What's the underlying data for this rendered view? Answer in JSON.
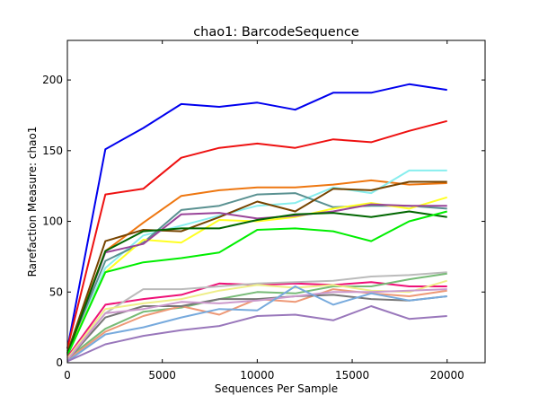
{
  "chart_data": {
    "type": "line",
    "title": "chao1: BarcodeSequence",
    "xlabel": "Sequences Per Sample",
    "ylabel": "Rarefaction Measure: chao1",
    "xlim": [
      0,
      22000
    ],
    "ylim": [
      0,
      228
    ],
    "xticks": [
      0,
      5000,
      10000,
      15000,
      20000
    ],
    "yticks": [
      0,
      50,
      100,
      150,
      200
    ],
    "grid": false,
    "x": [
      0,
      2000,
      4000,
      6000,
      8000,
      10000,
      12000,
      14000,
      16000,
      18000,
      20000
    ],
    "series": [
      {
        "color": "#0000ee",
        "values": [
          10,
          151,
          166,
          183,
          181,
          184,
          179,
          191,
          191,
          197,
          193
        ]
      },
      {
        "color": "#ee1111",
        "values": [
          10,
          119,
          123,
          145,
          152,
          155,
          152,
          158,
          156,
          164,
          171
        ]
      },
      {
        "color": "#ee7711",
        "values": [
          8,
          79,
          99,
          118,
          122,
          124,
          124,
          126,
          129,
          126,
          127
        ]
      },
      {
        "color": "#88eeee",
        "values": [
          6,
          67,
          90,
          97,
          104,
          111,
          113,
          124,
          120,
          136,
          136
        ]
      },
      {
        "color": "#5a9191",
        "values": [
          7,
          72,
          85,
          108,
          111,
          119,
          120,
          110,
          111,
          111,
          109
        ]
      },
      {
        "color": "#774400",
        "values": [
          7,
          86,
          94,
          93,
          103,
          114,
          107,
          123,
          122,
          128,
          128
        ]
      },
      {
        "color": "#ffff22",
        "values": [
          6,
          64,
          87,
          85,
          101,
          100,
          103,
          109,
          113,
          109,
          117
        ]
      },
      {
        "color": "#994499",
        "values": [
          6,
          78,
          84,
          105,
          106,
          102,
          104,
          107,
          112,
          111,
          111
        ]
      },
      {
        "color": "#006600",
        "values": [
          6,
          79,
          93,
          95,
          95,
          101,
          105,
          106,
          103,
          107,
          103
        ]
      },
      {
        "color": "#00ee00",
        "values": [
          5,
          64,
          71,
          74,
          78,
          94,
          95,
          93,
          86,
          100,
          107
        ]
      },
      {
        "color": "#ee1177",
        "values": [
          4,
          41,
          45,
          48,
          56,
          55,
          56,
          55,
          57,
          54,
          54
        ]
      },
      {
        "color": "#bbbbbb",
        "values": [
          3,
          35,
          52,
          52,
          54,
          56,
          57,
          58,
          61,
          62,
          64
        ]
      },
      {
        "color": "#77bb77",
        "values": [
          3,
          24,
          36,
          39,
          45,
          50,
          49,
          54,
          54,
          59,
          63
        ]
      },
      {
        "color": "#eeee88",
        "values": [
          3,
          38,
          42,
          45,
          51,
          55,
          53,
          55,
          51,
          50,
          58
        ]
      },
      {
        "color": "#ee9977",
        "values": [
          2,
          22,
          33,
          40,
          34,
          45,
          43,
          52,
          49,
          47,
          51
        ]
      },
      {
        "color": "#777777",
        "values": [
          2,
          32,
          40,
          40,
          45,
          45,
          47,
          48,
          45,
          44,
          47
        ]
      },
      {
        "color": "#cc99cc",
        "values": [
          2,
          35,
          38,
          43,
          42,
          44,
          47,
          50,
          50,
          51,
          52
        ]
      },
      {
        "color": "#77aadd",
        "values": [
          1,
          20,
          25,
          32,
          38,
          37,
          54,
          41,
          49,
          44,
          47
        ]
      },
      {
        "color": "#9977bb",
        "values": [
          1,
          13,
          19,
          23,
          26,
          33,
          34,
          30,
          40,
          31,
          33
        ]
      }
    ]
  }
}
